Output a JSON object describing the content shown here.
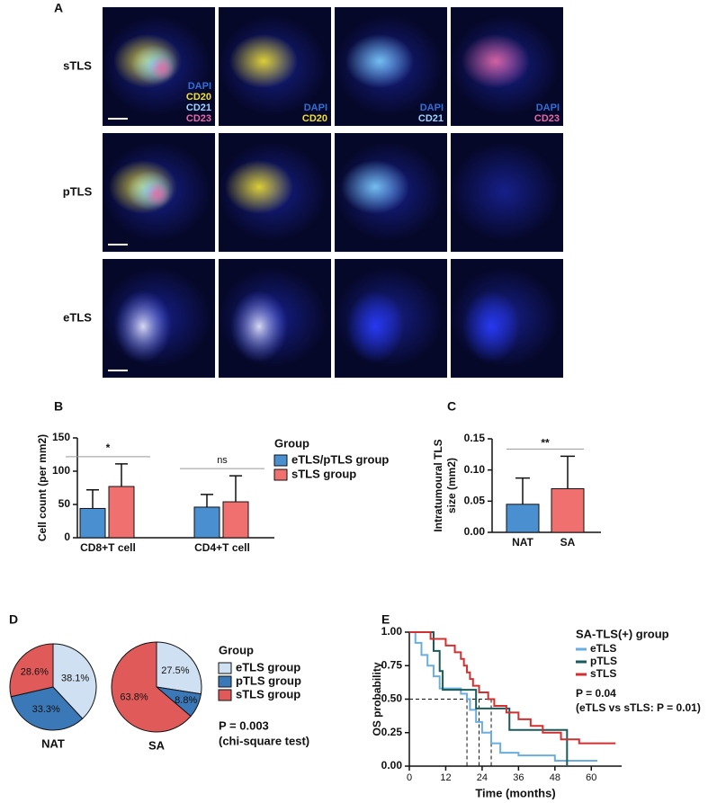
{
  "panel_labels": [
    "A",
    "B",
    "C",
    "D",
    "E"
  ],
  "image_grid": {
    "rows": [
      "sTLS",
      "pTLS",
      "eTLS"
    ],
    "legends": [
      [
        "DAPI",
        "CD20",
        "CD21",
        "CD23"
      ],
      [
        "DAPI",
        "CD20"
      ],
      [
        "DAPI",
        "CD21"
      ],
      [
        "DAPI",
        "CD23"
      ]
    ],
    "channel_colors": {
      "DAPI": "#2f6fd6",
      "CD20": "#f2e230",
      "CD21": "#9fd6ff",
      "CD23": "#e86aa6"
    }
  },
  "chart_data": [
    {
      "type": "bar",
      "ylabel": "Cell count (per mm2)",
      "categories": [
        "CD8+T cell",
        "CD4+T cell"
      ],
      "legend_title": "Group",
      "series": [
        {
          "name": "eTLS/pTLS group",
          "color": "#4a8fd0",
          "values": [
            44,
            46
          ],
          "errors": [
            28,
            19
          ]
        },
        {
          "name": "sTLS group",
          "color": "#f07070",
          "values": [
            77,
            54
          ],
          "errors": [
            34,
            39
          ]
        }
      ],
      "significance": [
        "*",
        "ns"
      ],
      "ylim": [
        0,
        150
      ],
      "yticks": [
        0,
        50,
        100,
        150
      ]
    },
    {
      "type": "bar",
      "ylabel": [
        "Intratumoural TLS",
        "size (mm2)"
      ],
      "categories": [
        "NAT",
        "SA"
      ],
      "values": [
        0.045,
        0.07
      ],
      "errors": [
        0.042,
        0.052
      ],
      "colors": [
        "#4a8fd0",
        "#f07070"
      ],
      "significance": "**",
      "ylim": [
        0,
        0.15
      ],
      "yticks": [
        {
          "value": 0,
          "label": "0.00"
        },
        {
          "value": 0.05,
          "label": "0.05"
        },
        {
          "value": 0.1,
          "label": "0.10"
        },
        {
          "value": 0.15,
          "label": "0.15"
        }
      ]
    },
    {
      "type": "pie",
      "legend_title": "Group",
      "categories": [
        "eTLS group",
        "pTLS group",
        "sTLS group"
      ],
      "colors": [
        "#cfe0f2",
        "#3a78b8",
        "#e05a5a"
      ],
      "pies": [
        {
          "label": "NAT",
          "values": [
            38.1,
            33.3,
            28.6
          ],
          "value_labels": [
            "38.1%",
            "33.3%",
            "28.6%"
          ]
        },
        {
          "label": "SA",
          "values": [
            27.5,
            8.8,
            63.8
          ],
          "value_labels": [
            "27.5%",
            "8.8%",
            "63.8%"
          ]
        }
      ],
      "annotations": [
        "P = 0.003",
        "(chi-square test)"
      ]
    },
    {
      "type": "line",
      "xlabel": "Time (months)",
      "ylabel": "OS probability",
      "legend_title": "SA-TLS(+) group",
      "series": [
        {
          "name": "eTLS",
          "color": "#6aaee0",
          "x": [
            0,
            2,
            4,
            6,
            8,
            10,
            17,
            19,
            20,
            22,
            24,
            27,
            30,
            36,
            48,
            62
          ],
          "values": [
            1.0,
            0.92,
            0.83,
            0.75,
            0.67,
            0.58,
            0.54,
            0.5,
            0.42,
            0.33,
            0.25,
            0.17,
            0.1,
            0.08,
            0.04,
            0.04
          ]
        },
        {
          "name": "pTLS",
          "color": "#1a5a5a",
          "x": [
            0,
            8,
            10,
            11,
            22,
            33,
            52
          ],
          "values": [
            1.0,
            0.86,
            0.71,
            0.57,
            0.43,
            0.27,
            0
          ]
        },
        {
          "name": "sTLS",
          "color": "#d03030",
          "x": [
            0,
            7,
            12,
            15,
            17,
            18,
            19,
            20,
            21,
            23,
            26,
            28,
            32,
            36,
            40,
            44,
            50,
            56,
            68
          ],
          "values": [
            1.0,
            0.95,
            0.9,
            0.85,
            0.8,
            0.75,
            0.7,
            0.65,
            0.6,
            0.55,
            0.5,
            0.45,
            0.4,
            0.35,
            0.3,
            0.25,
            0.2,
            0.17,
            0.17
          ]
        }
      ],
      "median_line": {
        "y": 0.5,
        "x": [
          19,
          23,
          27
        ]
      },
      "annotations": [
        "P = 0.04",
        "(eTLS vs sTLS: P = 0.01)"
      ],
      "xlim": [
        0,
        70
      ],
      "xticks": [
        0,
        12,
        24,
        36,
        48,
        60
      ],
      "ylim": [
        0,
        1
      ],
      "yticks": [
        {
          "value": 0,
          "label": "0.00"
        },
        {
          "value": 0.25,
          "label": "0.25"
        },
        {
          "value": 0.5,
          "label": "0.50"
        },
        {
          "value": 0.75,
          "label": "0.75"
        },
        {
          "value": 1,
          "label": "1.00"
        }
      ]
    }
  ]
}
